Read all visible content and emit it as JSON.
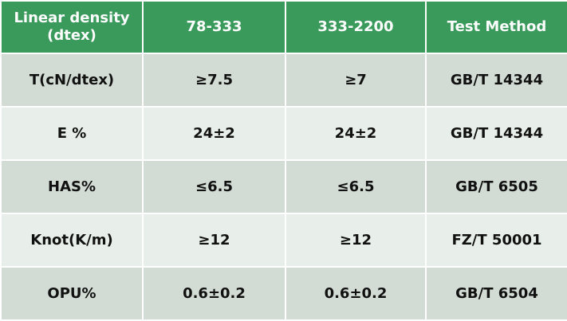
{
  "table": {
    "header": [
      "Linear density (dtex)",
      "78-333",
      "333-2200",
      "Test Method"
    ],
    "rows": [
      [
        "T(cN/dtex)",
        "≥7.5",
        "≥7",
        "GB/T 14344"
      ],
      [
        "E %",
        "24±2",
        "24±2",
        "GB/T 14344"
      ],
      [
        "HAS%",
        "≤6.5",
        "≤6.5",
        "GB/T 6505"
      ],
      [
        "Knot(K/m)",
        "≥12",
        "≥12",
        "FZ/T 50001"
      ],
      [
        "OPU%",
        "0.6±0.2",
        "0.6±0.2",
        "GB/T 6504"
      ]
    ]
  }
}
